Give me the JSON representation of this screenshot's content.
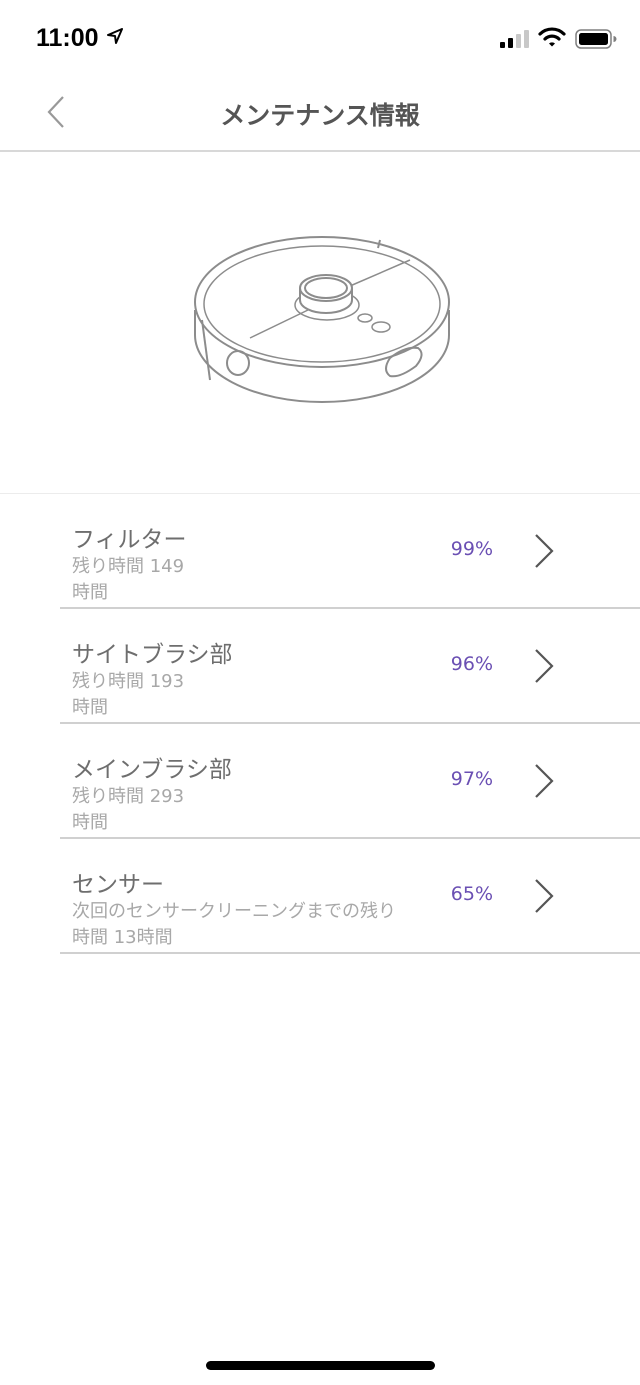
{
  "status_bar": {
    "time": "11:00"
  },
  "header": {
    "title": "メンテナンス情報"
  },
  "accent_color": "#6a4fb3",
  "items": [
    {
      "name": "フィルター",
      "sub_line1": "残り時間 149",
      "sub_line2": "時間",
      "percent": "99%"
    },
    {
      "name": "サイトブラシ部",
      "sub_line1": "残り時間 193",
      "sub_line2": "時間",
      "percent": "96%"
    },
    {
      "name": "メインブラシ部",
      "sub_line1": "残り時間 293",
      "sub_line2": "時間",
      "percent": "97%"
    },
    {
      "name": "センサー",
      "sub_line1": "次回のセンサークリーニングまでの残り",
      "sub_line2": "時間 13時間",
      "percent": "65%"
    }
  ]
}
